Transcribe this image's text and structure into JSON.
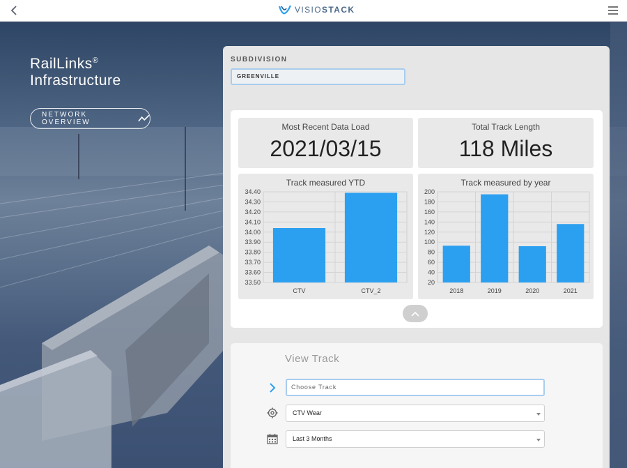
{
  "header": {
    "brand_prefix": "VISIO",
    "brand_suffix": "STACK",
    "back_icon": "chevron-left-icon",
    "menu_icon": "hamburger-menu-icon"
  },
  "app": {
    "title_line1": "RailLinks",
    "title_mark": "®",
    "title_line2": "Infrastructure",
    "network_button": "NETWORK OVERVIEW"
  },
  "subdivision": {
    "label": "SUBDIVISION",
    "value": "GREENVILLE"
  },
  "stats": {
    "data_load_label": "Most Recent Data Load",
    "data_load_value": "2021/03/15",
    "track_length_label": "Total Track Length",
    "track_length_value": "118 Miles"
  },
  "view_track": {
    "title": "View Track",
    "track_placeholder": "Choose Track",
    "metric_value": "CTV Wear",
    "period_value": "Last 3 Months"
  },
  "colors": {
    "bar": "#2ca0f0",
    "accent_border": "#a8cdee"
  },
  "chart_data": [
    {
      "type": "bar",
      "title": "Track measured YTD",
      "categories": [
        "CTV",
        "CTV_2"
      ],
      "values": [
        34.04,
        34.39
      ],
      "ylim": [
        33.5,
        34.4
      ],
      "yticks": [
        "33.50",
        "33.60",
        "33.70",
        "33.80",
        "33.90",
        "34.00",
        "34.10",
        "34.20",
        "34.30",
        "34.40"
      ],
      "grid": true
    },
    {
      "type": "bar",
      "title": "Track measured by year",
      "categories": [
        "2018",
        "2019",
        "2020",
        "2021"
      ],
      "values": [
        93,
        195,
        92,
        136
      ],
      "ylim": [
        20,
        200
      ],
      "yticks": [
        "20",
        "40",
        "60",
        "80",
        "100",
        "120",
        "140",
        "160",
        "180",
        "200"
      ],
      "grid": true
    }
  ]
}
